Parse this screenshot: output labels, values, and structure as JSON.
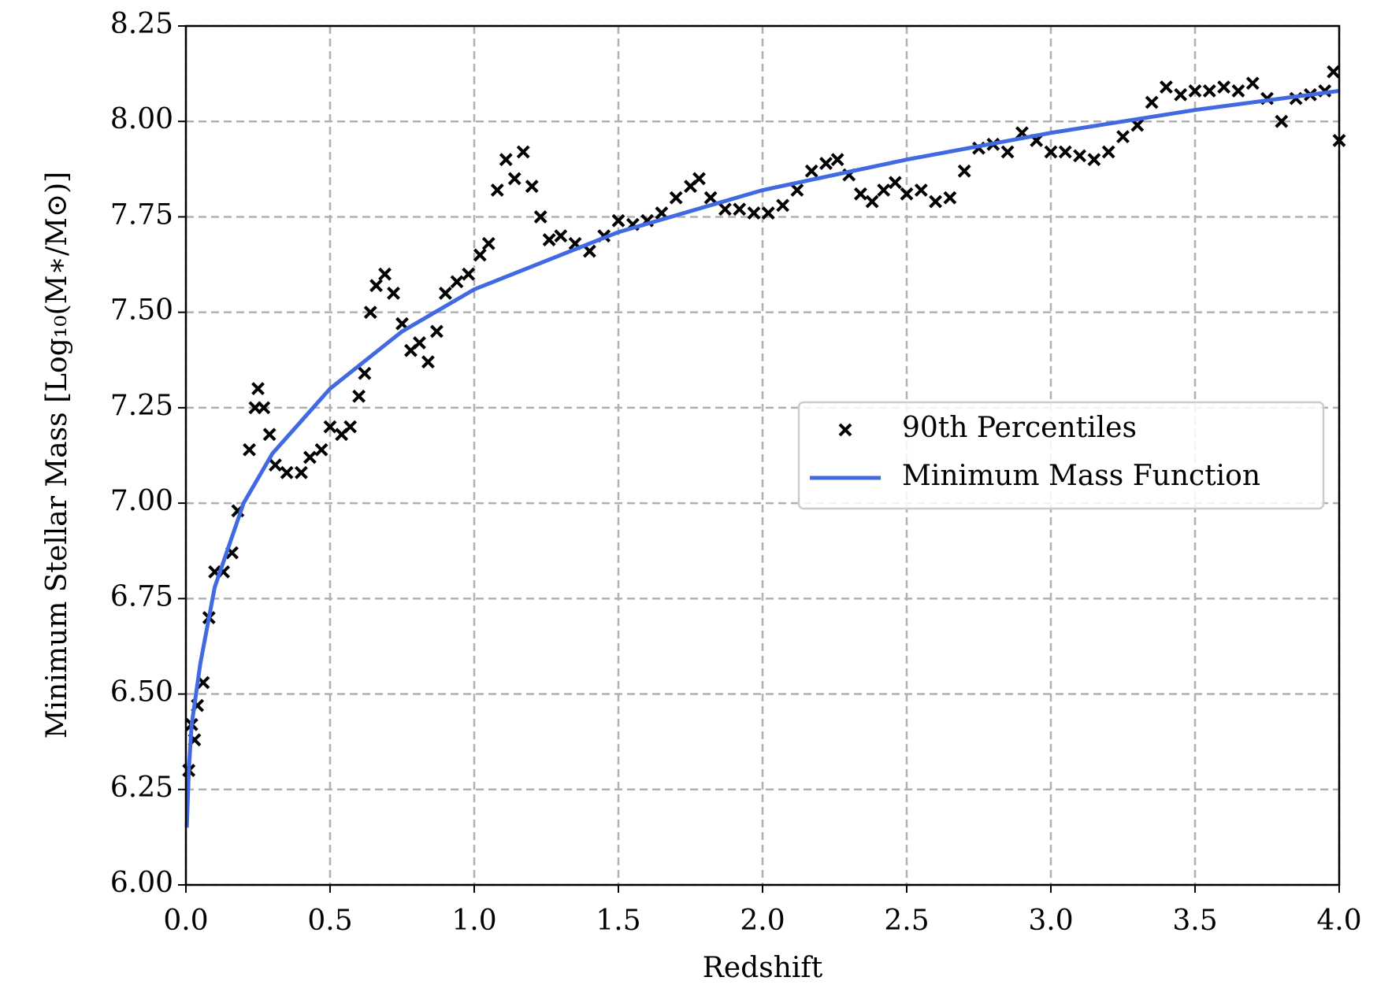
{
  "chart_data": {
    "type": "scatter",
    "x_label": "Redshift",
    "y_label": "Minimum Stellar Mass [Log₁₀(M∗/M⊙)]",
    "xlim": [
      0,
      4
    ],
    "ylim": [
      6,
      8.25
    ],
    "xticks": [
      {
        "value": 0,
        "label": "0.0"
      },
      0.5,
      {
        "value": 1,
        "label": "1.0"
      },
      1.5,
      {
        "value": 2,
        "label": "2.0"
      },
      2.5,
      {
        "value": 3,
        "label": "3.0"
      },
      3.5,
      {
        "value": 4,
        "label": "4.0"
      }
    ],
    "yticks": [
      {
        "value": 6,
        "label": "6.00"
      },
      6.25,
      {
        "value": 6.5,
        "label": "6.50"
      },
      6.75,
      {
        "value": 7,
        "label": "7.00"
      },
      7.25,
      {
        "value": 7.5,
        "label": "7.50"
      },
      7.75,
      {
        "value": 8,
        "label": "8.00"
      },
      8.25
    ],
    "grid": true,
    "legend": "center right",
    "series": [
      {
        "name": "90th Percentiles",
        "type": "scatter",
        "color": "#000000",
        "x": [
          0.01,
          0.02,
          0.03,
          0.04,
          0.06,
          0.08,
          0.1,
          0.13,
          0.16,
          0.18,
          0.22,
          0.24,
          0.25,
          0.27,
          0.29,
          0.31,
          0.35,
          0.4,
          0.43,
          0.47,
          0.5,
          0.54,
          0.57,
          0.6,
          0.62,
          0.64,
          0.66,
          0.69,
          0.72,
          0.75,
          0.78,
          0.81,
          0.84,
          0.87,
          0.9,
          0.94,
          0.98,
          1.02,
          1.05,
          1.08,
          1.11,
          1.14,
          1.17,
          1.2,
          1.23,
          1.26,
          1.3,
          1.35,
          1.4,
          1.45,
          1.5,
          1.55,
          1.6,
          1.65,
          1.7,
          1.75,
          1.78,
          1.82,
          1.87,
          1.92,
          1.97,
          2.02,
          2.07,
          2.12,
          2.17,
          2.22,
          2.26,
          2.3,
          2.34,
          2.38,
          2.42,
          2.46,
          2.5,
          2.55,
          2.6,
          2.65,
          2.7,
          2.75,
          2.8,
          2.85,
          2.9,
          2.95,
          3.0,
          3.05,
          3.1,
          3.15,
          3.2,
          3.25,
          3.3,
          3.35,
          3.4,
          3.45,
          3.5,
          3.55,
          3.6,
          3.65,
          3.7,
          3.75,
          3.8,
          3.85,
          3.9,
          3.95,
          3.98,
          4.0
        ],
        "values": [
          6.3,
          6.42,
          6.38,
          6.47,
          6.53,
          6.7,
          6.82,
          6.82,
          6.87,
          6.98,
          7.14,
          7.25,
          7.3,
          7.25,
          7.18,
          7.1,
          7.08,
          7.08,
          7.12,
          7.14,
          7.2,
          7.18,
          7.2,
          7.28,
          7.34,
          7.5,
          7.57,
          7.6,
          7.55,
          7.47,
          7.4,
          7.42,
          7.37,
          7.45,
          7.55,
          7.58,
          7.6,
          7.65,
          7.68,
          7.82,
          7.9,
          7.85,
          7.92,
          7.83,
          7.75,
          7.69,
          7.7,
          7.68,
          7.66,
          7.7,
          7.74,
          7.73,
          7.74,
          7.76,
          7.8,
          7.83,
          7.85,
          7.8,
          7.77,
          7.77,
          7.76,
          7.76,
          7.78,
          7.82,
          7.87,
          7.89,
          7.9,
          7.86,
          7.81,
          7.79,
          7.82,
          7.84,
          7.81,
          7.82,
          7.79,
          7.8,
          7.87,
          7.93,
          7.94,
          7.92,
          7.97,
          7.95,
          7.92,
          7.92,
          7.91,
          7.9,
          7.92,
          7.96,
          7.99,
          8.05,
          8.09,
          8.07,
          8.08,
          8.08,
          8.09,
          8.08,
          8.1,
          8.06,
          8.0,
          8.06,
          8.07,
          8.08,
          8.13,
          7.95
        ]
      },
      {
        "name": "Minimum Mass Function",
        "type": "line",
        "color": "#4169e1",
        "x": [
          0.003,
          0.01,
          0.02,
          0.05,
          0.1,
          0.2,
          0.3,
          0.5,
          0.75,
          1.0,
          1.5,
          2.0,
          2.5,
          3.0,
          3.5,
          4.0
        ],
        "values": [
          6.15,
          6.3,
          6.42,
          6.58,
          6.78,
          7.0,
          7.13,
          7.3,
          7.45,
          7.56,
          7.71,
          7.82,
          7.9,
          7.97,
          8.03,
          8.08
        ]
      }
    ]
  }
}
